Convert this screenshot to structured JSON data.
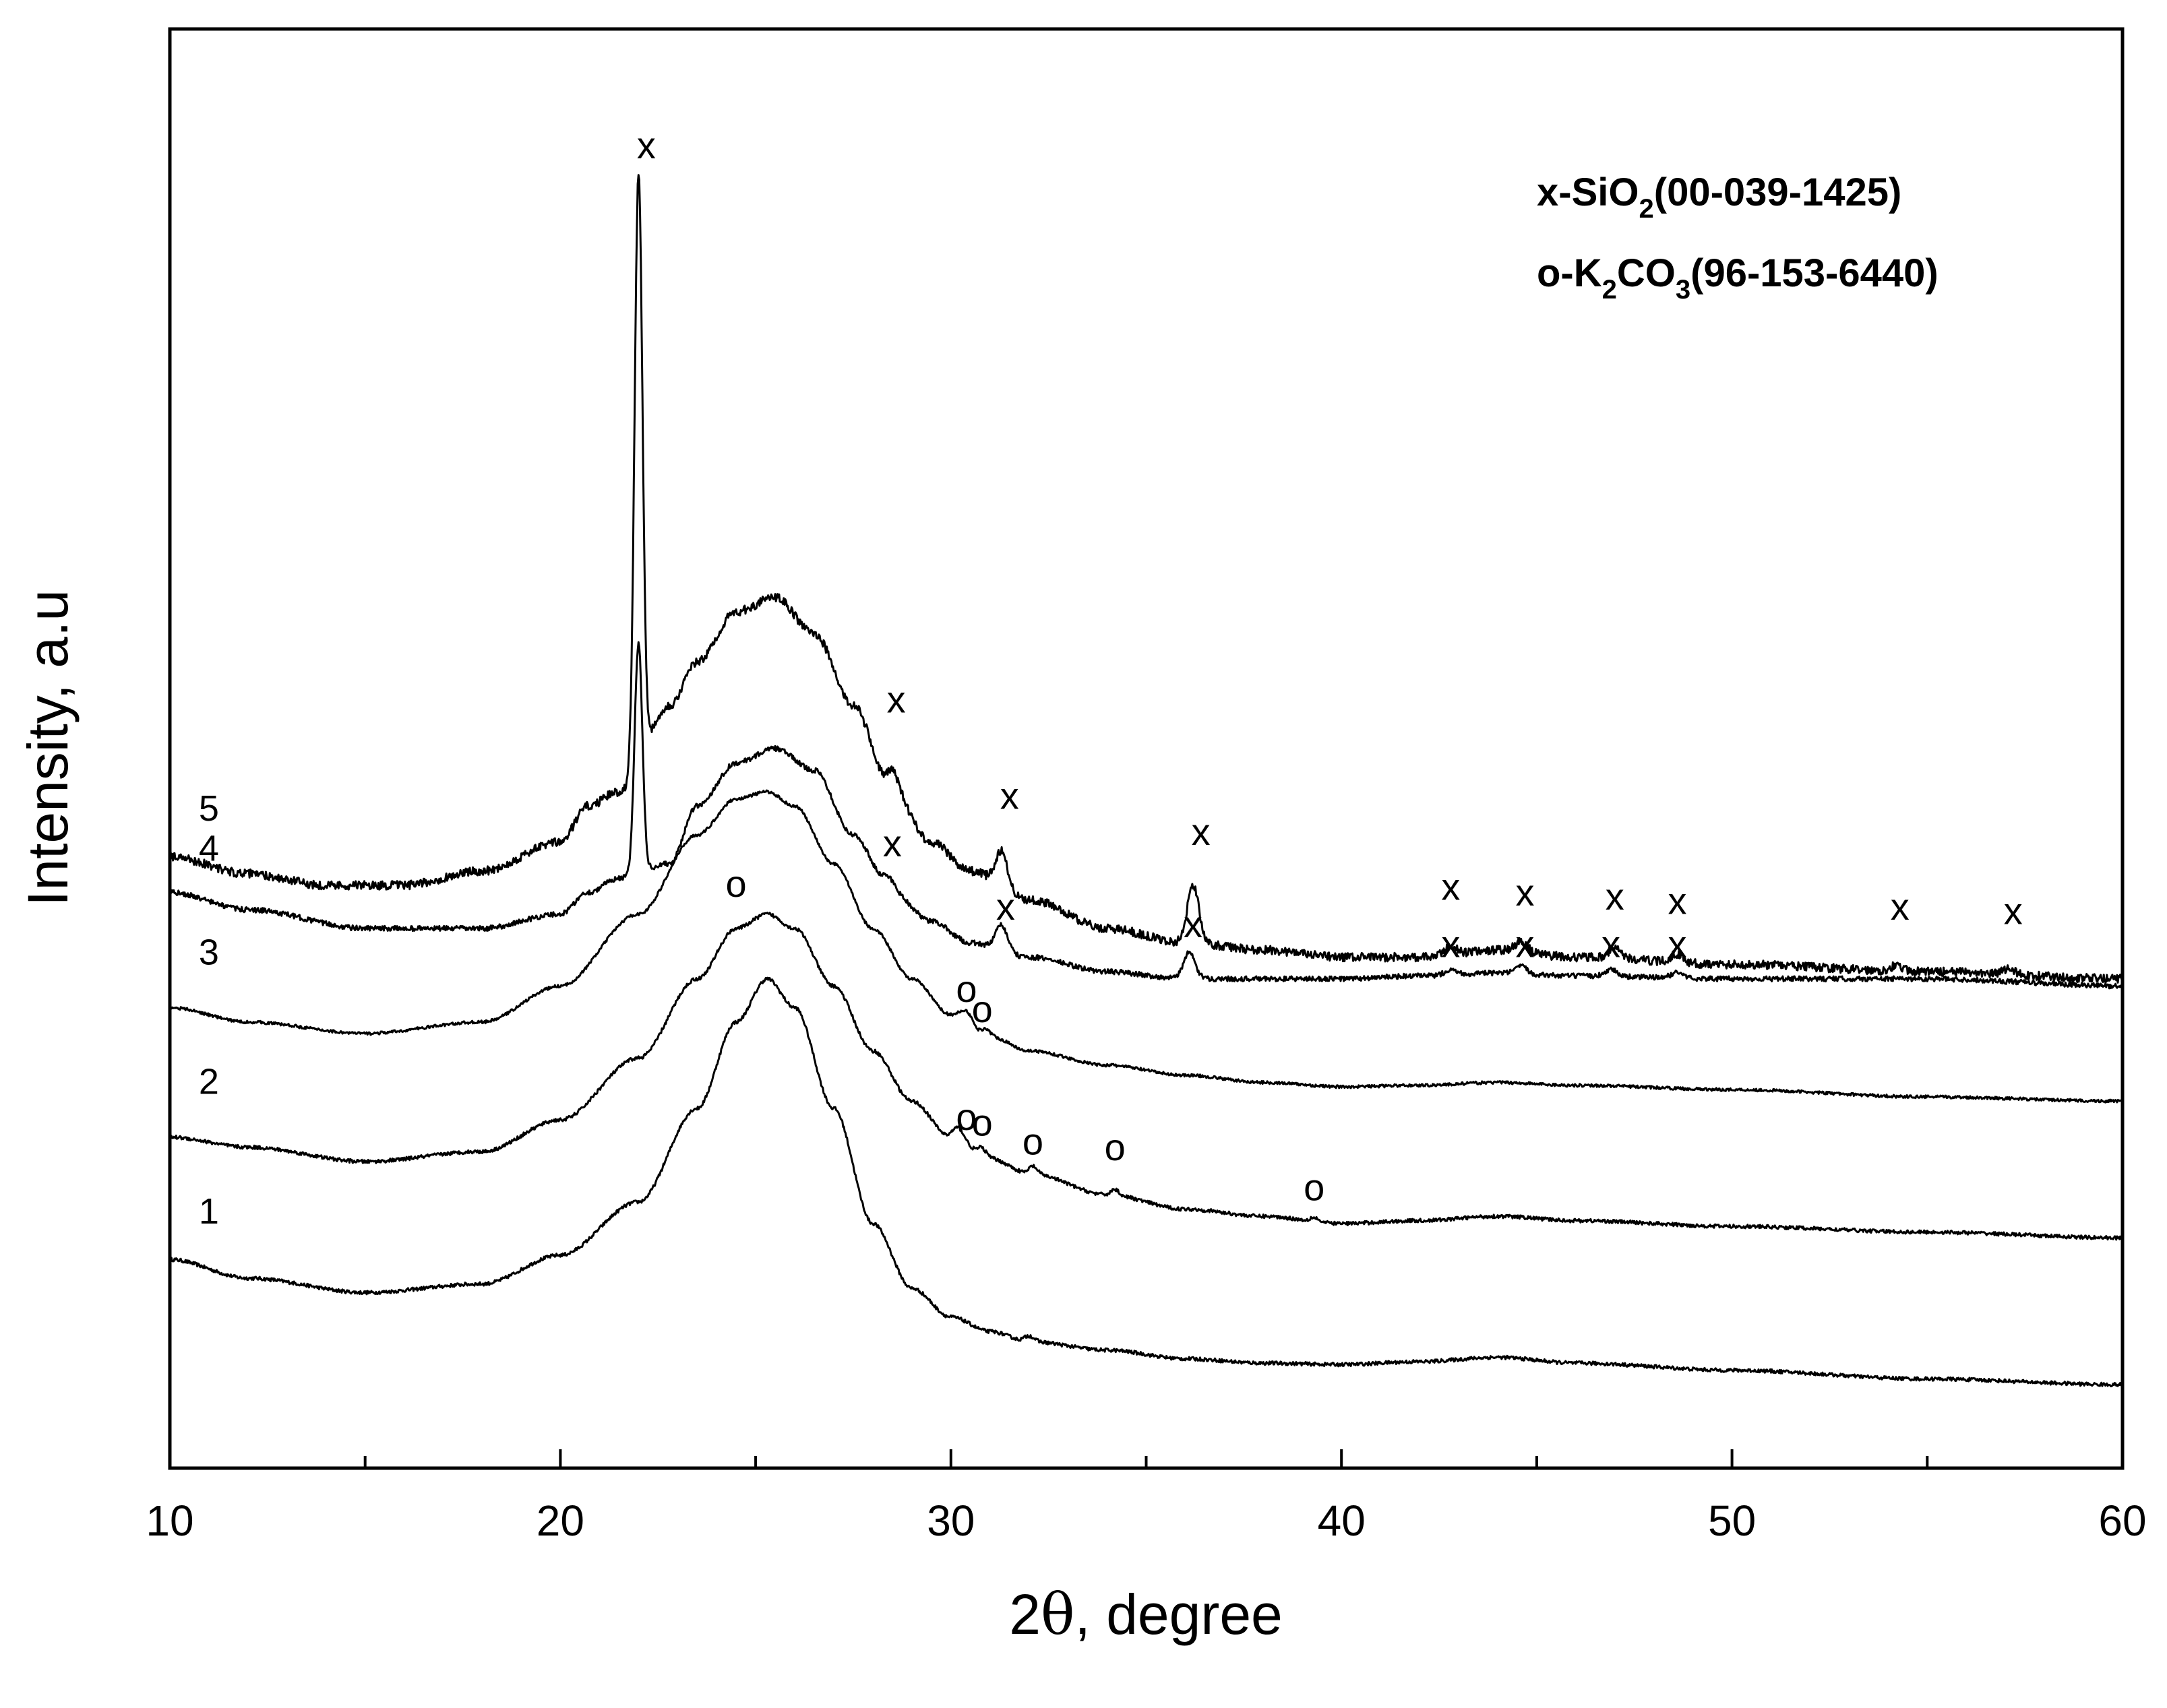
{
  "chart_data": {
    "type": "line",
    "xlabel_main": "2",
    "xlabel_theta": "θ",
    "xlabel_rest": ", degree",
    "ylabel": "Intensity, a.u",
    "xlim": [
      10,
      60
    ],
    "ylim": [
      0,
      100
    ],
    "xticks": [
      10,
      20,
      30,
      40,
      50,
      60
    ],
    "xtick_labels": [
      "10",
      "20",
      "30",
      "40",
      "50",
      "60"
    ],
    "y_ticks_shown": false,
    "legend": {
      "position": "top-right",
      "line1": {
        "a": "x-SiO",
        "sub": "2",
        "b": "(00-039-1425)"
      },
      "line2": {
        "a": "o-K",
        "sub1": "2",
        "b": "CO",
        "sub2": "3",
        "c": "(96-153-6440)"
      }
    },
    "series": [
      {
        "name": "1",
        "noise": 0.25,
        "points": [
          [
            10,
            14.5
          ],
          [
            12,
            13.2
          ],
          [
            15,
            12.2
          ],
          [
            18,
            12.8
          ],
          [
            20,
            14.8
          ],
          [
            22,
            18.5
          ],
          [
            23.5,
            25
          ],
          [
            24.5,
            31
          ],
          [
            25.3,
            34
          ],
          [
            26,
            32
          ],
          [
            27,
            25
          ],
          [
            28,
            17
          ],
          [
            29,
            12.5
          ],
          [
            30,
            10.5
          ],
          [
            31,
            9.5
          ],
          [
            32,
            8.8
          ],
          [
            34,
            8.2
          ],
          [
            36,
            7.6
          ],
          [
            38,
            7.3
          ],
          [
            40,
            7.2
          ],
          [
            42,
            7.4
          ],
          [
            44,
            7.7
          ],
          [
            46,
            7.3
          ],
          [
            50,
            6.8
          ],
          [
            55,
            6.2
          ],
          [
            60,
            5.8
          ]
        ],
        "peaks": [
          [
            32,
            0.4,
            0.12
          ]
        ]
      },
      {
        "name": "2",
        "noise": 0.25,
        "points": [
          [
            10,
            23
          ],
          [
            12,
            22.3
          ],
          [
            15,
            21.3
          ],
          [
            18,
            22
          ],
          [
            20,
            24.2
          ],
          [
            22,
            28.5
          ],
          [
            23.5,
            34
          ],
          [
            24.5,
            37.5
          ],
          [
            25.3,
            38.5
          ],
          [
            26,
            37.5
          ],
          [
            27,
            33.5
          ],
          [
            28,
            29
          ],
          [
            29,
            25.5
          ],
          [
            30,
            23
          ],
          [
            31,
            21.5
          ],
          [
            32,
            20.5
          ],
          [
            34,
            19
          ],
          [
            36,
            18
          ],
          [
            38,
            17.5
          ],
          [
            40,
            17
          ],
          [
            42,
            17.2
          ],
          [
            44,
            17.5
          ],
          [
            46,
            17.2
          ],
          [
            50,
            16.8
          ],
          [
            55,
            16.4
          ],
          [
            60,
            16
          ]
        ],
        "peaks": [
          [
            30.2,
            0.8,
            0.15
          ],
          [
            30.8,
            0.6,
            0.12
          ],
          [
            32.1,
            0.5,
            0.1
          ],
          [
            34.2,
            0.4,
            0.1
          ],
          [
            39.3,
            0.3,
            0.1
          ]
        ]
      },
      {
        "name": "3",
        "noise": 0.2,
        "points": [
          [
            10,
            32
          ],
          [
            12,
            31
          ],
          [
            15,
            30.2
          ],
          [
            18,
            31
          ],
          [
            20,
            33.5
          ],
          [
            22,
            38.5
          ],
          [
            23.5,
            44
          ],
          [
            24.5,
            46.5
          ],
          [
            25.3,
            47
          ],
          [
            26,
            46
          ],
          [
            27,
            42
          ],
          [
            28,
            37.5
          ],
          [
            29,
            34
          ],
          [
            30,
            31.5
          ],
          [
            31,
            30
          ],
          [
            32,
            29
          ],
          [
            34,
            28
          ],
          [
            36,
            27.3
          ],
          [
            38,
            26.8
          ],
          [
            40,
            26.5
          ],
          [
            42,
            26.6
          ],
          [
            44,
            26.8
          ],
          [
            46,
            26.6
          ],
          [
            50,
            26.3
          ],
          [
            55,
            25.8
          ],
          [
            60,
            25.5
          ]
        ],
        "peaks": [
          [
            30.4,
            0.8,
            0.15
          ],
          [
            30.9,
            0.5,
            0.1
          ]
        ]
      },
      {
        "name": "4",
        "noise": 0.35,
        "points": [
          [
            10,
            40
          ],
          [
            12,
            38.8
          ],
          [
            15,
            37.5
          ],
          [
            18,
            37.5
          ],
          [
            20,
            38.5
          ],
          [
            20.7,
            40
          ],
          [
            21.5,
            41
          ],
          [
            22.8,
            42
          ],
          [
            23.5,
            46
          ],
          [
            24.5,
            49
          ],
          [
            25.5,
            50
          ],
          [
            26.5,
            48.5
          ],
          [
            27.5,
            44
          ],
          [
            28.5,
            40
          ],
          [
            29.5,
            38
          ],
          [
            30.5,
            36.5
          ],
          [
            32,
            35.5
          ],
          [
            34,
            34.5
          ],
          [
            36,
            34
          ],
          [
            38,
            34
          ],
          [
            40,
            34
          ],
          [
            42,
            34.2
          ],
          [
            44,
            34.4
          ],
          [
            46,
            34.2
          ],
          [
            50,
            34
          ],
          [
            55,
            34
          ],
          [
            60,
            33.5
          ]
        ],
        "peaks": [
          [
            22,
            16,
            0.1
          ],
          [
            28.4,
            1.0,
            0.15
          ],
          [
            31.3,
            1.8,
            0.15
          ],
          [
            36.1,
            1.8,
            0.15
          ],
          [
            42.8,
            0.4,
            0.15
          ],
          [
            44.6,
            0.5,
            0.15
          ],
          [
            46.9,
            0.5,
            0.15
          ],
          [
            48.6,
            0.4,
            0.15
          ]
        ]
      },
      {
        "name": "5",
        "noise": 0.6,
        "points": [
          [
            10,
            42.5
          ],
          [
            12,
            41.3
          ],
          [
            14,
            40.5
          ],
          [
            16,
            40.5
          ],
          [
            18,
            41.5
          ],
          [
            20,
            43.5
          ],
          [
            20.7,
            46
          ],
          [
            21.5,
            47
          ],
          [
            22.8,
            53
          ],
          [
            23.5,
            56
          ],
          [
            24.5,
            59.5
          ],
          [
            25.5,
            60.5
          ],
          [
            26.5,
            58
          ],
          [
            27.5,
            53
          ],
          [
            28.5,
            47
          ],
          [
            29.5,
            43.5
          ],
          [
            30.5,
            41.5
          ],
          [
            32,
            39.5
          ],
          [
            34,
            37.5
          ],
          [
            36,
            36.5
          ],
          [
            38,
            36
          ],
          [
            40,
            35.5
          ],
          [
            42,
            35.5
          ],
          [
            44,
            36
          ],
          [
            46,
            35.5
          ],
          [
            50,
            35
          ],
          [
            55,
            34.5
          ],
          [
            60,
            34
          ]
        ],
        "peaks": [
          [
            22,
            41,
            0.1
          ],
          [
            28.5,
            1.5,
            0.15
          ],
          [
            31.3,
            2.5,
            0.15
          ],
          [
            36.2,
            4,
            0.15
          ],
          [
            42.8,
            0.6,
            0.15
          ],
          [
            44.6,
            0.7,
            0.15
          ],
          [
            47,
            0.8,
            0.15
          ],
          [
            48.6,
            0.6,
            0.15
          ],
          [
            54.2,
            0.4,
            0.15
          ],
          [
            57.1,
            0.4,
            0.15
          ]
        ]
      }
    ],
    "curve_labels": [
      {
        "text": "1",
        "x": 11,
        "y": 17
      },
      {
        "text": "2",
        "x": 11,
        "y": 26
      },
      {
        "text": "3",
        "x": 11,
        "y": 35
      },
      {
        "text": "4",
        "x": 11,
        "y": 42.2
      },
      {
        "text": "5",
        "x": 11,
        "y": 45
      }
    ],
    "annotations": [
      {
        "text": "x",
        "x": 22.2,
        "y": 91
      },
      {
        "text": "x",
        "x": 28.6,
        "y": 52.5
      },
      {
        "text": "x",
        "x": 31.5,
        "y": 45.8
      },
      {
        "text": "x",
        "x": 36.4,
        "y": 43.3
      },
      {
        "text": "x",
        "x": 42.8,
        "y": 39.5
      },
      {
        "text": "x",
        "x": 44.7,
        "y": 39.1
      },
      {
        "text": "x",
        "x": 47,
        "y": 38.8
      },
      {
        "text": "x",
        "x": 48.6,
        "y": 38.5
      },
      {
        "text": "x",
        "x": 54.3,
        "y": 38.1
      },
      {
        "text": "x",
        "x": 57.2,
        "y": 37.8
      },
      {
        "text": "x",
        "x": 28.5,
        "y": 42.5
      },
      {
        "text": "x",
        "x": 31.4,
        "y": 38.1
      },
      {
        "text": "x",
        "x": 36.2,
        "y": 36.9
      },
      {
        "text": "x",
        "x": 42.8,
        "y": 35.5
      },
      {
        "text": "x",
        "x": 44.7,
        "y": 35.5
      },
      {
        "text": "x",
        "x": 46.9,
        "y": 35.5
      },
      {
        "text": "x",
        "x": 48.6,
        "y": 35.5
      },
      {
        "text": "o",
        "x": 24.5,
        "y": 39.7
      },
      {
        "text": "o",
        "x": 30.4,
        "y": 32.4
      },
      {
        "text": "o",
        "x": 30.8,
        "y": 31.0
      },
      {
        "text": "o",
        "x": 30.4,
        "y": 23.5
      },
      {
        "text": "o",
        "x": 30.8,
        "y": 23.1
      },
      {
        "text": "o",
        "x": 32.1,
        "y": 21.8
      },
      {
        "text": "o",
        "x": 34.2,
        "y": 21.4
      },
      {
        "text": "o",
        "x": 39.3,
        "y": 18.6
      }
    ]
  }
}
